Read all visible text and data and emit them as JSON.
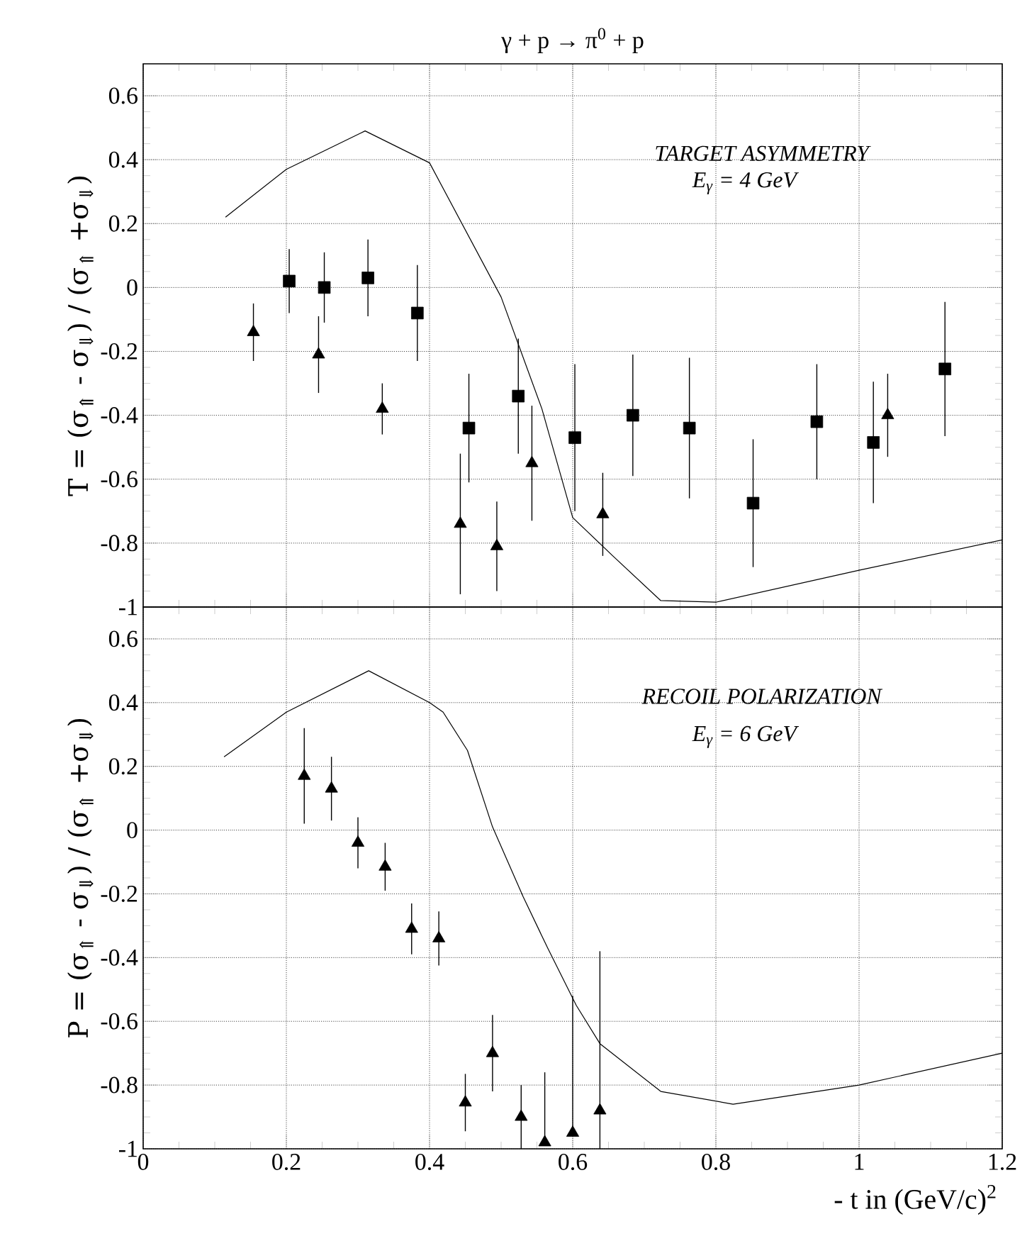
{
  "chart_data": [
    {
      "type": "scatter",
      "title": "γ + p → π$^{0}$ + p",
      "ylabel": "T = (σ$_{⇑}$ - σ$_{⇓}$) / (σ$_{⇑}$ +σ$_{⇓}$)",
      "xlim": [
        0,
        1.2
      ],
      "ylim": [
        -1,
        0.7
      ],
      "xticks": [
        0,
        0.2,
        0.4,
        0.6,
        0.8,
        1,
        1.2
      ],
      "yticks": [
        -1,
        -0.8,
        -0.6,
        -0.4,
        -0.2,
        0,
        0.2,
        0.4,
        0.6
      ],
      "grid": true,
      "tick_labels": "y",
      "annotations": [
        "TARGET ASYMMETRY",
        "E$_{γ}$ = 4 GeV"
      ],
      "series": [
        {
          "marker": "square",
          "color": "#000000",
          "x": [
            0.204,
            0.253,
            0.314,
            0.383,
            0.455,
            0.524,
            0.603,
            0.684,
            0.763,
            0.852,
            0.941,
            1.02,
            1.12
          ],
          "values": [
            0.02,
            0.0,
            0.03,
            -0.08,
            -0.44,
            -0.34,
            -0.47,
            -0.4,
            -0.44,
            -0.675,
            -0.42,
            -0.485,
            -0.255
          ],
          "errors": [
            0.1,
            0.11,
            0.12,
            0.15,
            0.17,
            0.18,
            0.23,
            0.19,
            0.22,
            0.2,
            0.18,
            0.19,
            0.21
          ]
        },
        {
          "marker": "triangle",
          "color": "#000000",
          "x": [
            0.154,
            0.245,
            0.334,
            0.443,
            0.494,
            0.543,
            0.642,
            1.04
          ],
          "values": [
            -0.14,
            -0.21,
            -0.38,
            -0.74,
            -0.81,
            -0.55,
            -0.71,
            -0.4
          ],
          "errors": [
            0.09,
            0.12,
            0.08,
            0.22,
            0.14,
            0.18,
            0.13,
            0.13
          ]
        },
        {
          "type": "line",
          "color": "#000000",
          "x": [
            0.115,
            0.2,
            0.31,
            0.4,
            0.45,
            0.5,
            0.557,
            0.6,
            0.656,
            0.723,
            0.8,
            1.0,
            1.2
          ],
          "values": [
            0.22,
            0.37,
            0.49,
            0.39,
            0.18,
            -0.03,
            -0.38,
            -0.72,
            -0.84,
            -0.98,
            -0.985,
            -0.885,
            -0.79
          ]
        }
      ]
    },
    {
      "type": "scatter",
      "ylabel": "P = (σ$_{⇑}$ - σ$_{⇓}$) / (σ$_{⇑}$ +σ$_{⇓}$)",
      "xlabel": "- t in (GeV/c)$^{2}$",
      "xlim": [
        0,
        1.2
      ],
      "ylim": [
        -1,
        0.7
      ],
      "xticks": [
        0,
        0.2,
        0.4,
        0.6,
        0.8,
        1,
        1.2
      ],
      "yticks": [
        -1,
        -0.8,
        -0.6,
        -0.4,
        -0.2,
        0,
        0.2,
        0.4,
        0.6
      ],
      "grid": true,
      "annotations": [
        "RECOIL POLARIZATION",
        "E$_{γ}$ = 6 GeV"
      ],
      "series": [
        {
          "marker": "triangle",
          "color": "#000000",
          "x": [
            0.225,
            0.263,
            0.3,
            0.338,
            0.375,
            0.413,
            0.45,
            0.488,
            0.528,
            0.561,
            0.6,
            0.638
          ],
          "values": [
            0.17,
            0.13,
            -0.04,
            -0.115,
            -0.31,
            -0.34,
            -0.855,
            -0.7,
            -0.9,
            -0.98,
            -0.95,
            -0.88
          ],
          "errors": [
            0.15,
            0.1,
            0.08,
            0.075,
            0.08,
            0.085,
            0.09,
            0.12,
            0.1,
            [
              -0.98,
              -0.76
            ],
            [
              -0.95,
              -0.52
            ],
            [
              -1,
              -0.38
            ]
          ]
        },
        {
          "type": "line",
          "color": "#000000",
          "x": [
            0.113,
            0.2,
            0.315,
            0.4,
            0.419,
            0.453,
            0.488,
            0.531,
            0.565,
            0.605,
            0.638,
            0.723,
            0.824,
            1.0,
            1.2
          ],
          "values": [
            0.23,
            0.37,
            0.5,
            0.4,
            0.37,
            0.25,
            0.01,
            -0.21,
            -0.37,
            -0.55,
            -0.67,
            -0.82,
            -0.86,
            -0.8,
            -0.7
          ]
        }
      ]
    }
  ]
}
